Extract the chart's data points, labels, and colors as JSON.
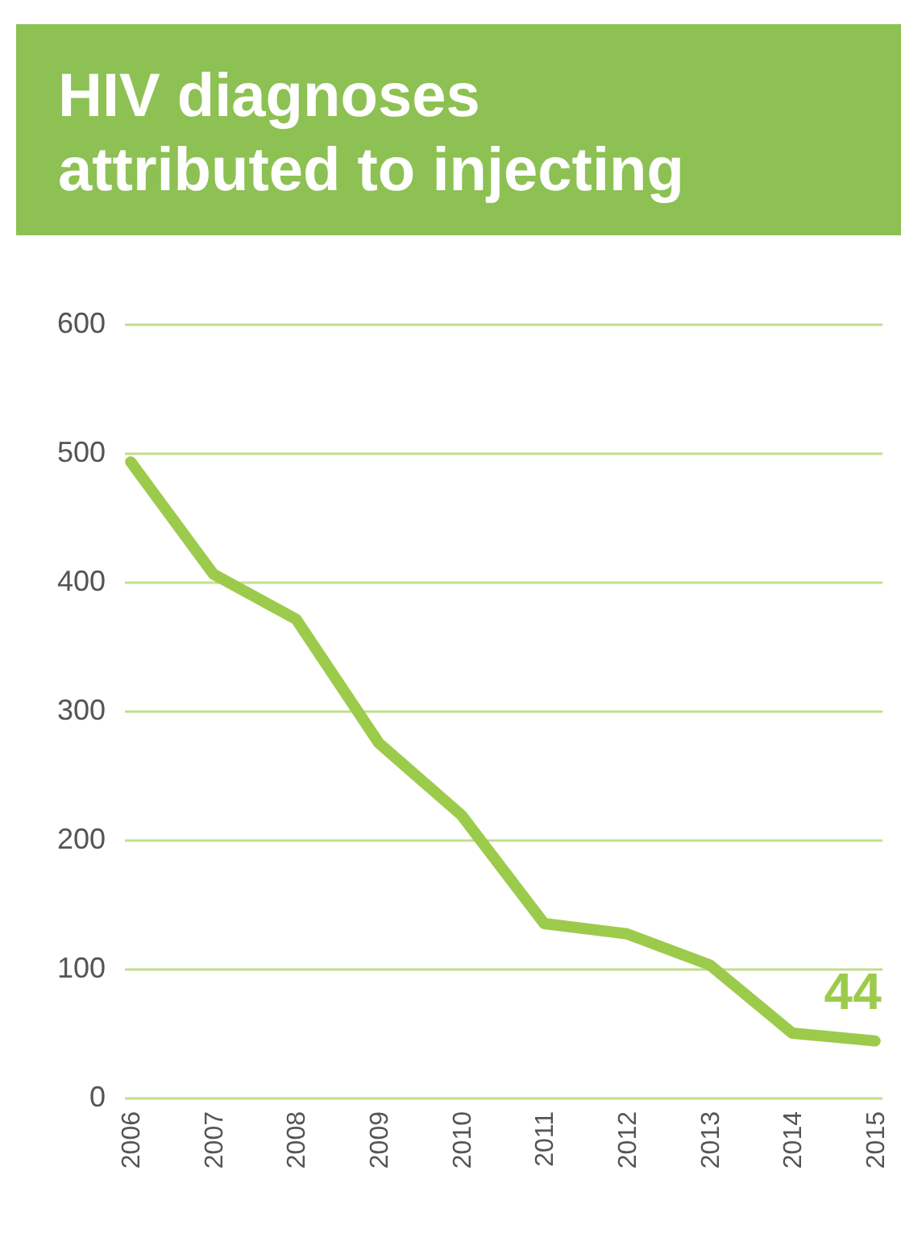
{
  "chart_data": {
    "type": "line",
    "title": "HIV diagnoses attributed to injecting",
    "categories": [
      "2006",
      "2007",
      "2008",
      "2009",
      "2010",
      "2011",
      "2012",
      "2013",
      "2014",
      "2015"
    ],
    "series": [
      {
        "color": "#9ccb4c",
        "values": [
          493,
          406,
          371,
          275,
          219,
          135,
          127,
          103,
          50,
          44
        ],
        "value_labels": [
          null,
          null,
          null,
          null,
          null,
          null,
          null,
          null,
          null,
          "44"
        ]
      }
    ],
    "ylim": [
      0,
      600
    ],
    "yticks": [
      0,
      100,
      200,
      300,
      400,
      500,
      600
    ],
    "grid": "y",
    "marker": "none",
    "line_style": "solid"
  }
}
